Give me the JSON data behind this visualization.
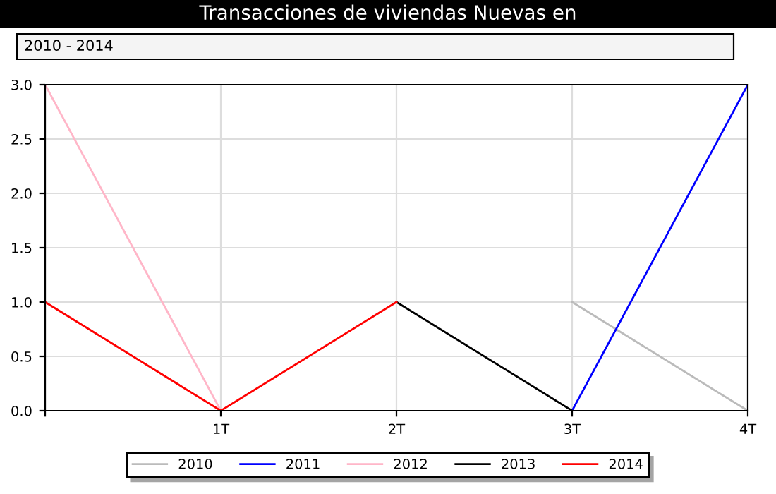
{
  "chart_data": {
    "type": "line",
    "title": "Transacciones de viviendas Nuevas en",
    "subtitle": "2010 - 2014",
    "categories": [
      null,
      "1T",
      "2T",
      "3T",
      "4T"
    ],
    "series": [
      {
        "name": "2010",
        "color": "#bbbbbb",
        "values": [
          null,
          null,
          null,
          1.0,
          0.0
        ]
      },
      {
        "name": "2011",
        "color": "#0000ff",
        "values": [
          null,
          null,
          null,
          0.0,
          3.0
        ]
      },
      {
        "name": "2012",
        "color": "#ffb6c8",
        "values": [
          3.0,
          0.0,
          null,
          null,
          null
        ]
      },
      {
        "name": "2013",
        "color": "#000000",
        "values": [
          null,
          null,
          1.0,
          0.0,
          null
        ]
      },
      {
        "name": "2014",
        "color": "#ff0000",
        "values": [
          1.0,
          0.0,
          1.0,
          null,
          null
        ]
      }
    ],
    "ylim": [
      0.0,
      3.0
    ],
    "yticks": [
      {
        "value": 0,
        "label": "0.0"
      },
      0.5,
      {
        "value": 1,
        "label": "1.0"
      },
      1.5,
      {
        "value": 2,
        "label": "2.0"
      },
      2.5,
      {
        "value": 3,
        "label": "3.0"
      }
    ],
    "grid": true,
    "legend": "bottom",
    "marker": "none",
    "line_style": "solid"
  }
}
